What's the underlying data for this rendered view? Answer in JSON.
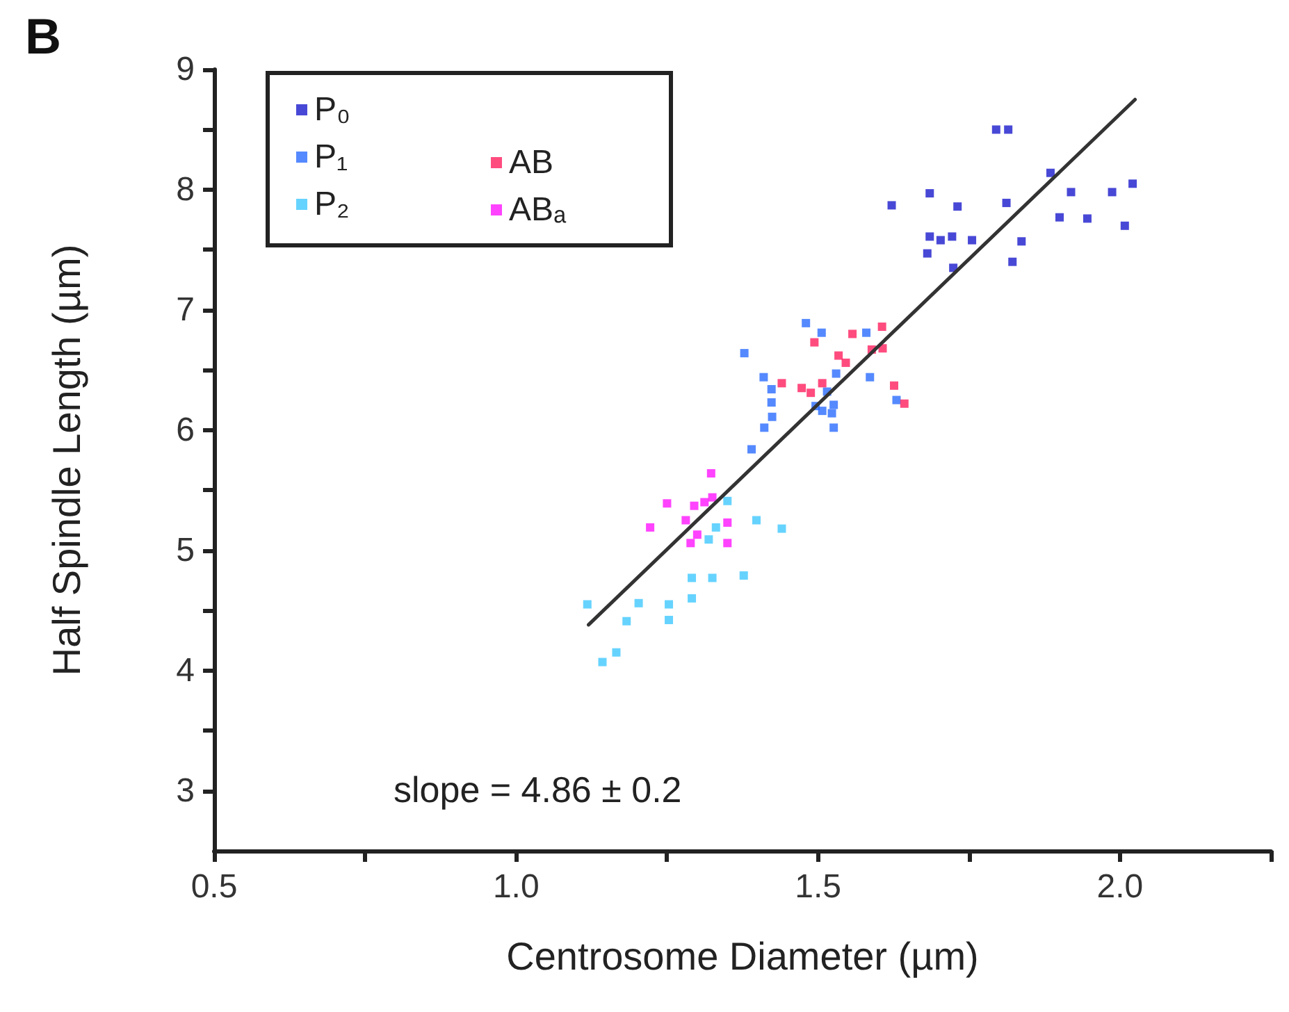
{
  "chart_data": {
    "type": "scatter",
    "title": "B",
    "xlabel": "Centrosome Diameter (µm)",
    "ylabel": "Half Spindle Length (µm)",
    "annotations": [
      "slope = 4.86 ± 0.2"
    ],
    "xlim": [
      0.5,
      2.25
    ],
    "ylim": [
      2.5,
      9
    ],
    "xticks": [
      {
        "value": 0.5,
        "label": "0.5"
      },
      {
        "value": 0.75,
        "label": null
      },
      {
        "value": 1,
        "label": "1.0"
      },
      {
        "value": 1.25,
        "label": null
      },
      {
        "value": 1.5,
        "label": "1.5"
      },
      {
        "value": 1.75,
        "label": null
      },
      {
        "value": 2,
        "label": "2.0"
      },
      {
        "value": 2.25,
        "label": null
      }
    ],
    "yticks": [
      3,
      {
        "value": 3.5,
        "label": null
      },
      4,
      {
        "value": 4.5,
        "label": null
      },
      5,
      {
        "value": 5.5,
        "label": null
      },
      6,
      {
        "value": 6.5,
        "label": null
      },
      7,
      {
        "value": 7.5,
        "label": null
      },
      8,
      {
        "value": 8.5,
        "label": null
      },
      9
    ],
    "grid": false,
    "legend": "top left",
    "marker": "square",
    "series": [
      {
        "name": "P₀",
        "color": "#1a1acc",
        "x": [
          1.795,
          1.815,
          1.885,
          1.919,
          1.987,
          2.021,
          1.622,
          1.685,
          1.731,
          1.812,
          1.9,
          1.946,
          2.008,
          1.685,
          1.703,
          1.722,
          1.755,
          1.837,
          1.681,
          1.822,
          1.724
        ],
        "values": [
          8.5,
          8.5,
          8.14,
          7.98,
          7.98,
          8.05,
          7.87,
          7.97,
          7.86,
          7.89,
          7.77,
          7.76,
          7.7,
          7.61,
          7.58,
          7.61,
          7.58,
          7.57,
          7.47,
          7.4,
          7.35
        ]
      },
      {
        "name": "P₁",
        "color": "#2a6cff",
        "x": [
          1.48,
          1.506,
          1.58,
          1.378,
          1.41,
          1.423,
          1.423,
          1.424,
          1.411,
          1.39,
          1.53,
          1.586,
          1.63,
          1.515,
          1.526,
          1.507,
          1.523,
          1.526,
          1.496
        ],
        "values": [
          6.89,
          6.81,
          6.81,
          6.64,
          6.44,
          6.34,
          6.23,
          6.11,
          6.02,
          5.84,
          6.47,
          6.44,
          6.25,
          6.32,
          6.21,
          6.16,
          6.14,
          6.02,
          6.2
        ]
      },
      {
        "name": "P₂",
        "color": "#40c8ff",
        "x": [
          1.35,
          1.331,
          1.398,
          1.44,
          1.319,
          1.291,
          1.325,
          1.377,
          1.291,
          1.203,
          1.253,
          1.118,
          1.183,
          1.253,
          1.166,
          1.143
        ],
        "values": [
          5.41,
          5.19,
          5.25,
          5.18,
          5.09,
          4.77,
          4.77,
          4.79,
          4.6,
          4.56,
          4.55,
          4.55,
          4.41,
          4.42,
          4.15,
          4.07
        ]
      },
      {
        "name": "AB",
        "color": "#ff1f5f",
        "x": [
          1.494,
          1.557,
          1.606,
          1.534,
          1.546,
          1.589,
          1.607,
          1.44,
          1.473,
          1.488,
          1.507,
          1.626,
          1.643
        ],
        "values": [
          6.73,
          6.8,
          6.86,
          6.62,
          6.56,
          6.67,
          6.68,
          6.39,
          6.35,
          6.31,
          6.39,
          6.37,
          6.22
        ]
      },
      {
        "name": "ABₐ",
        "color": "#ff14ff",
        "x": [
          1.323,
          1.25,
          1.295,
          1.312,
          1.325,
          1.222,
          1.35,
          1.3,
          1.289,
          1.35,
          1.281
        ],
        "values": [
          5.64,
          5.39,
          5.37,
          5.4,
          5.44,
          5.19,
          5.23,
          5.13,
          5.06,
          5.06,
          5.25
        ]
      },
      {
        "type": "line",
        "color": "#333333",
        "marker": "none",
        "x": [
          1.12,
          2.025
        ],
        "values": [
          4.38,
          8.75
        ]
      }
    ]
  }
}
